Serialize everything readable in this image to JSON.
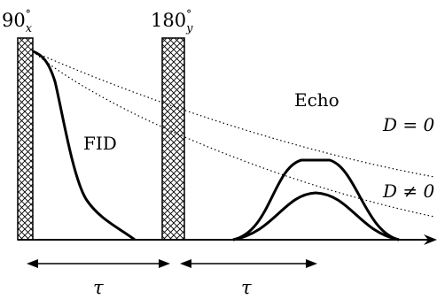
{
  "pulses": {
    "first": {
      "angle": "90",
      "sup": "°",
      "sub": "x"
    },
    "second": {
      "angle": "180",
      "sup": "°",
      "sub": "y"
    }
  },
  "labels": {
    "fid": "FID",
    "echo": "Echo",
    "d_zero": "D = 0",
    "d_nonzero": "D ≠ 0",
    "tau1": "τ",
    "tau2": "τ"
  }
}
